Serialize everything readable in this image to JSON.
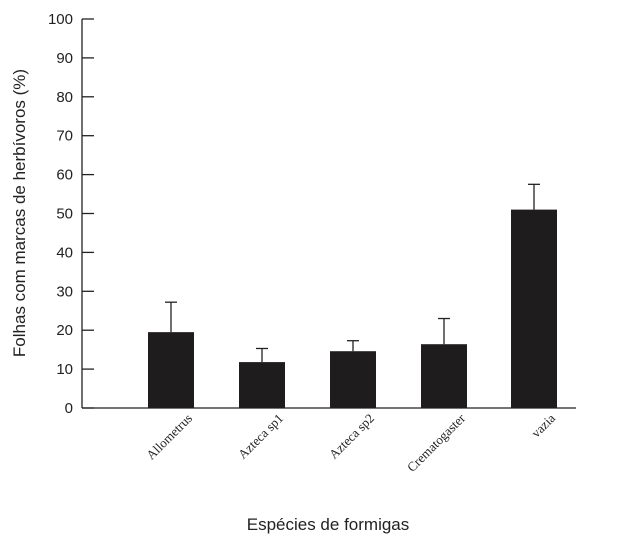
{
  "chart_data": {
    "type": "bar",
    "xlabel": "Espécies de formigas",
    "ylabel": "Folhas com marcas de herbívoros (%)",
    "ylim": [
      0,
      100
    ],
    "yticks": [
      0,
      10,
      20,
      30,
      40,
      50,
      60,
      70,
      80,
      90,
      100
    ],
    "categories": [
      "Allometrus",
      "Azteca sp1",
      "Azteca sp2",
      "Crematogaster",
      "vazia"
    ],
    "values": [
      19.5,
      11.8,
      14.6,
      16.4,
      51.0
    ],
    "error_upper": [
      27.2,
      15.3,
      17.3,
      23.0,
      57.5
    ],
    "bar_color": "#1e1c1c"
  }
}
